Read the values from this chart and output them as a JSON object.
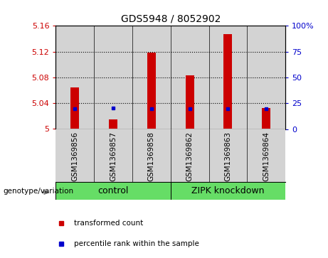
{
  "title": "GDS5948 / 8052902",
  "categories": [
    "GSM1369856",
    "GSM1369857",
    "GSM1369858",
    "GSM1369862",
    "GSM1369863",
    "GSM1369864"
  ],
  "red_values": [
    5.065,
    5.015,
    5.118,
    5.083,
    5.147,
    5.033
  ],
  "blue_values": [
    5.031,
    5.033,
    5.031,
    5.031,
    5.031,
    5.031
  ],
  "ylim_left": [
    5.0,
    5.16
  ],
  "yticks_left": [
    5.0,
    5.04,
    5.08,
    5.12,
    5.16
  ],
  "ytick_labels_left": [
    "5",
    "5.04",
    "5.08",
    "5.12",
    "5.16"
  ],
  "yticks_right": [
    0,
    25,
    50,
    75,
    100
  ],
  "ytick_labels_right": [
    "0",
    "25",
    "50",
    "75",
    "100%"
  ],
  "bar_width": 0.22,
  "bar_color": "#cc0000",
  "dot_color": "#0000cc",
  "baseline": 5.0,
  "group1_label": "control",
  "group2_label": "ZIPK knockdown",
  "group1_color": "#66dd66",
  "group2_color": "#66dd66",
  "panel_color": "#d3d3d3",
  "legend_red_label": "transformed count",
  "legend_blue_label": "percentile rank within the sample",
  "ylabel_left_color": "#cc0000",
  "ylabel_right_color": "#0000cc",
  "gridline_color": "#000000",
  "title_fontsize": 10,
  "tick_fontsize": 8,
  "label_fontsize": 8
}
